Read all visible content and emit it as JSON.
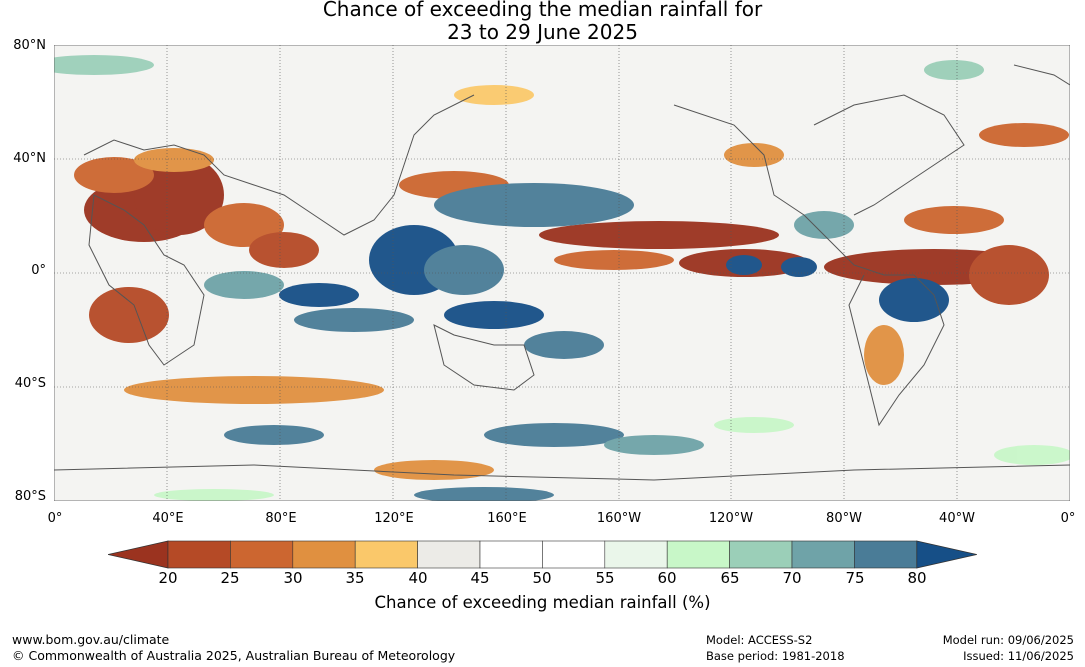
{
  "title": {
    "line1": "Chance of exceeding the median rainfall for",
    "line2": "23 to 29 June 2025"
  },
  "axes": {
    "lat_labels": [
      "80°N",
      "40°N",
      "0°",
      "40°S",
      "80°S"
    ],
    "lon_labels": [
      "0°",
      "40°E",
      "80°E",
      "120°E",
      "160°E",
      "160°W",
      "120°W",
      "80°W",
      "40°W",
      "0°"
    ]
  },
  "colorbar": {
    "ticks": [
      "20",
      "25",
      "30",
      "35",
      "40",
      "45",
      "50",
      "55",
      "60",
      "65",
      "70",
      "75",
      "80"
    ],
    "colors": [
      "#9b331f",
      "#b54a26",
      "#cc6630",
      "#e09040",
      "#fac86a",
      "#ecebe7",
      "#ffffff",
      "#ffffff",
      "#eaf6ea",
      "#c8f7c8",
      "#9bcfb8",
      "#6fa3a8",
      "#4a7c97",
      "#164f87"
    ],
    "label": "Chance of exceeding median rainfall (%)"
  },
  "footer": {
    "url": "www.bom.gov.au/climate",
    "copyright": "© Commonwealth of Australia 2025, Australian Bureau of Meteorology",
    "model": "Model: ACCESS-S2",
    "base_period": "Base period: 1981-2018",
    "model_run": "Model run: 09/06/2025",
    "issued": "Issued: 11/06/2025"
  }
}
